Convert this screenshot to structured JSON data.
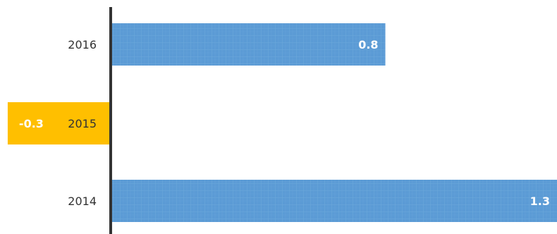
{
  "chart_data": {
    "type": "bar",
    "orientation": "horizontal",
    "categories": [
      "2016",
      "2015",
      "2014"
    ],
    "values": [
      0.8,
      -0.3,
      1.3
    ],
    "value_labels": [
      "0.8",
      "-0.3",
      "1.3"
    ],
    "title": "",
    "xlabel": "",
    "ylabel": "",
    "xlim": [
      -0.3,
      1.3
    ],
    "grid": false,
    "legend": "none",
    "colors": {
      "positive": "#5b9bd5",
      "negative": "#ffbf00",
      "axis": "#333333"
    }
  }
}
